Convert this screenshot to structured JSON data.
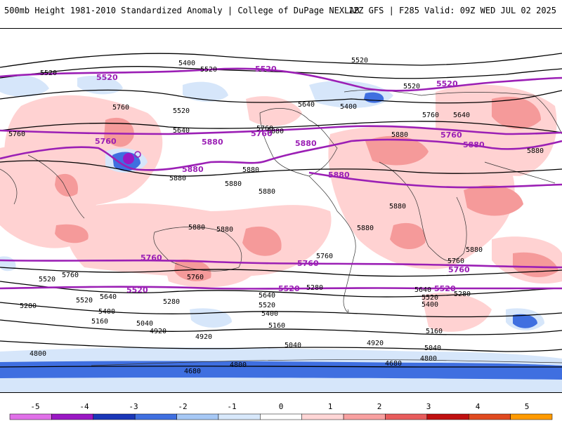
{
  "header": {
    "title": "500mb Height 1981-2010 Standardized Anomaly | College of DuPage NEXLAB",
    "run_info": "12Z GFS | F285 Valid: 09Z WED JUL 02 2025"
  },
  "map": {
    "contour_labels": [
      {
        "text": "5400"
      },
      {
        "text": "5520"
      },
      {
        "text": "5520"
      },
      {
        "text": "5520"
      },
      {
        "text": "5520"
      },
      {
        "text": "5760"
      },
      {
        "text": "5520"
      },
      {
        "text": "5640"
      },
      {
        "text": "5400"
      },
      {
        "text": "5640"
      },
      {
        "text": "5760"
      },
      {
        "text": "5760"
      },
      {
        "text": "5640"
      },
      {
        "text": "5880"
      },
      {
        "text": "5880"
      },
      {
        "text": "5880"
      },
      {
        "text": "5880"
      },
      {
        "text": "5880"
      },
      {
        "text": "5880"
      },
      {
        "text": "5880"
      },
      {
        "text": "5880"
      },
      {
        "text": "5880"
      },
      {
        "text": "5880"
      },
      {
        "text": "5760"
      },
      {
        "text": "5760"
      },
      {
        "text": "5520"
      },
      {
        "text": "5760"
      },
      {
        "text": "5640"
      },
      {
        "text": "5520"
      },
      {
        "text": "5400"
      },
      {
        "text": "5280"
      },
      {
        "text": "5160"
      },
      {
        "text": "5280"
      },
      {
        "text": "5040"
      },
      {
        "text": "4920"
      },
      {
        "text": "4920"
      },
      {
        "text": "5640"
      },
      {
        "text": "5520"
      },
      {
        "text": "5400"
      },
      {
        "text": "5280"
      },
      {
        "text": "5160"
      },
      {
        "text": "5040"
      },
      {
        "text": "4920"
      },
      {
        "text": "4800"
      },
      {
        "text": "4800"
      },
      {
        "text": "4680"
      },
      {
        "text": "4680"
      },
      {
        "text": "5760"
      },
      {
        "text": "5640"
      },
      {
        "text": "5520"
      },
      {
        "text": "5400"
      },
      {
        "text": "5280"
      },
      {
        "text": "5160"
      },
      {
        "text": "5040"
      },
      {
        "text": "4800"
      },
      {
        "text": "5880"
      },
      {
        "text": "5760"
      },
      {
        "text": "5880"
      }
    ],
    "climo_labels": [
      {
        "text": "5520"
      },
      {
        "text": "5520"
      },
      {
        "text": "5520"
      },
      {
        "text": "5760"
      },
      {
        "text": "5880"
      },
      {
        "text": "5760"
      },
      {
        "text": "5880"
      },
      {
        "text": "5880"
      },
      {
        "text": "5760"
      },
      {
        "text": "5880"
      },
      {
        "text": "5880"
      },
      {
        "text": "5760"
      },
      {
        "text": "5760"
      },
      {
        "text": "5760"
      },
      {
        "text": "5520"
      },
      {
        "text": "5520"
      },
      {
        "text": "5520"
      }
    ]
  },
  "colorbar": {
    "ticks": [
      "-5",
      "-4",
      "-3",
      "-2",
      "-1",
      "0",
      "1",
      "2",
      "3",
      "4",
      "5"
    ],
    "colors": [
      "#e070e8",
      "#9a18c4",
      "#1a37b8",
      "#3f6fe0",
      "#a6c8f5",
      "#d8e8fb",
      "#ffffff",
      "#ffd6d6",
      "#f8a0a0",
      "#e85c5c",
      "#c01010",
      "#e04a20",
      "#ff9a00"
    ]
  }
}
